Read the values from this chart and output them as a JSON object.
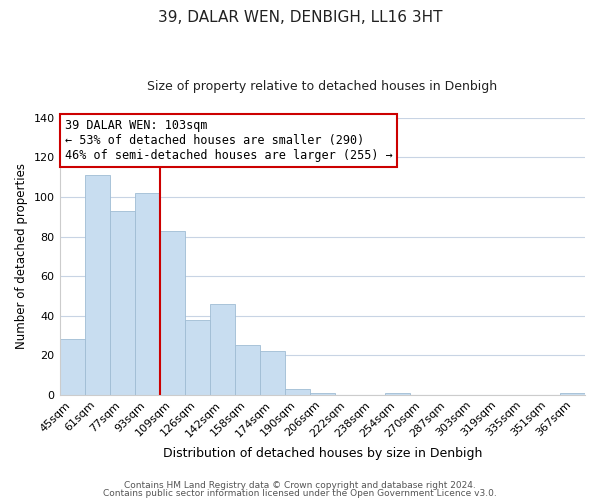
{
  "title": "39, DALAR WEN, DENBIGH, LL16 3HT",
  "subtitle": "Size of property relative to detached houses in Denbigh",
  "xlabel": "Distribution of detached houses by size in Denbigh",
  "ylabel": "Number of detached properties",
  "bar_labels": [
    "45sqm",
    "61sqm",
    "77sqm",
    "93sqm",
    "109sqm",
    "126sqm",
    "142sqm",
    "158sqm",
    "174sqm",
    "190sqm",
    "206sqm",
    "222sqm",
    "238sqm",
    "254sqm",
    "270sqm",
    "287sqm",
    "303sqm",
    "319sqm",
    "335sqm",
    "351sqm",
    "367sqm"
  ],
  "bar_values": [
    28,
    111,
    93,
    102,
    83,
    38,
    46,
    25,
    22,
    3,
    1,
    0,
    0,
    1,
    0,
    0,
    0,
    0,
    0,
    0,
    1
  ],
  "bar_color": "#c8ddf0",
  "bar_edge_color": "#9fbcd4",
  "vline_color": "#cc0000",
  "vline_x": 4.0,
  "annotation_title": "39 DALAR WEN: 103sqm",
  "annotation_line1": "← 53% of detached houses are smaller (290)",
  "annotation_line2": "46% of semi-detached houses are larger (255) →",
  "annotation_box_color": "#ffffff",
  "annotation_box_edge": "#cc0000",
  "ylim": [
    0,
    140
  ],
  "yticks": [
    0,
    20,
    40,
    60,
    80,
    100,
    120,
    140
  ],
  "footer_line1": "Contains HM Land Registry data © Crown copyright and database right 2024.",
  "footer_line2": "Contains public sector information licensed under the Open Government Licence v3.0.",
  "background_color": "#ffffff",
  "grid_color": "#c8d4e4",
  "title_fontsize": 11,
  "subtitle_fontsize": 9,
  "ylabel_fontsize": 8.5,
  "xlabel_fontsize": 9,
  "tick_fontsize": 8,
  "footer_fontsize": 6.5
}
